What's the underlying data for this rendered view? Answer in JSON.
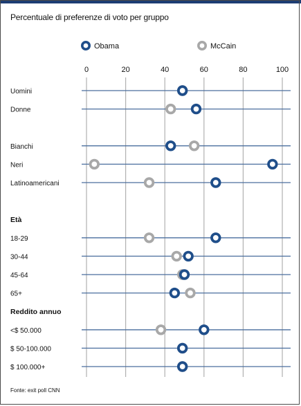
{
  "chart_data": {
    "type": "scatter",
    "title": "Percentuale di preferenze di voto per gruppo",
    "xlim": [
      0,
      100
    ],
    "x_ticks": [
      0,
      20,
      40,
      60,
      80,
      100
    ],
    "grid": "vertical",
    "legend_position": "top",
    "series": [
      {
        "name": "Obama",
        "color": "#1f4e8a"
      },
      {
        "name": "McCain",
        "color": "#a8a8a8"
      }
    ],
    "groups": [
      {
        "label": "Uomini",
        "header": false,
        "values": {
          "Obama": 49,
          "McCain": 49
        }
      },
      {
        "label": "Donne",
        "header": false,
        "values": {
          "Obama": 56,
          "McCain": 43
        }
      },
      {
        "label": "",
        "header": false,
        "values": null
      },
      {
        "label": "Bianchi",
        "header": false,
        "values": {
          "Obama": 43,
          "McCain": 55
        }
      },
      {
        "label": "Neri",
        "header": false,
        "values": {
          "Obama": 95,
          "McCain": 4
        }
      },
      {
        "label": "Latinoamericani",
        "header": false,
        "values": {
          "Obama": 66,
          "McCain": 32
        }
      },
      {
        "label": "",
        "header": false,
        "values": null
      },
      {
        "label": "Età",
        "header": true,
        "values": null
      },
      {
        "label": "18-29",
        "header": false,
        "values": {
          "Obama": 66,
          "McCain": 32
        }
      },
      {
        "label": "30-44",
        "header": false,
        "values": {
          "Obama": 52,
          "McCain": 46
        }
      },
      {
        "label": "45-64",
        "header": false,
        "values": {
          "Obama": 50,
          "McCain": 49
        }
      },
      {
        "label": "65+",
        "header": false,
        "values": {
          "Obama": 45,
          "McCain": 53
        }
      },
      {
        "label": "Reddito annuo",
        "header": true,
        "values": null
      },
      {
        "label": "<$ 50.000",
        "header": false,
        "values": {
          "Obama": 60,
          "McCain": 38
        }
      },
      {
        "label": "$ 50-100.000",
        "header": false,
        "values": {
          "Obama": 49,
          "McCain": 49
        }
      },
      {
        "label": "$ 100.000+",
        "header": false,
        "values": {
          "Obama": 49,
          "McCain": 49
        }
      }
    ],
    "footnote": "Fonte: exit poll CNN"
  }
}
